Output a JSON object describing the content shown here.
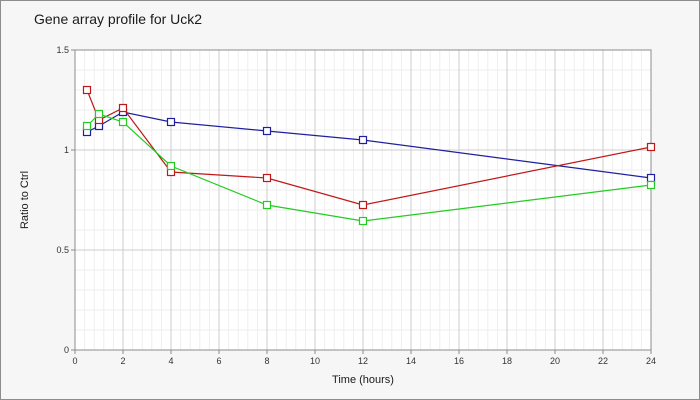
{
  "chart_data": {
    "type": "line",
    "title": "Gene array profile for Uck2",
    "xlabel": "Time (hours)",
    "ylabel": "Ratio to Ctrl",
    "xlim": [
      0,
      24
    ],
    "ylim": [
      0,
      1.5
    ],
    "x_ticks": [
      0,
      2,
      4,
      6,
      8,
      10,
      12,
      14,
      16,
      18,
      20,
      22,
      24
    ],
    "y_ticks": [
      0,
      0.5,
      1,
      1.5
    ],
    "y_tick_labels": [
      "0",
      "0.5",
      "1",
      "1.5"
    ],
    "grid": true,
    "legend": "none",
    "series": [
      {
        "color": "#1f1fa0",
        "marker": "square",
        "x": [
          0.5,
          1,
          2,
          4,
          8,
          12,
          24
        ],
        "y": [
          1.09,
          1.12,
          1.19,
          1.14,
          1.095,
          1.05,
          0.86
        ]
      },
      {
        "color": "#c01818",
        "marker": "square",
        "x": [
          0.5,
          1,
          2,
          4,
          8,
          12,
          24
        ],
        "y": [
          1.3,
          1.15,
          1.21,
          0.89,
          0.86,
          0.725,
          1.015
        ]
      },
      {
        "color": "#22cc22",
        "marker": "square",
        "x": [
          0.5,
          1,
          2,
          4,
          8,
          12,
          24
        ],
        "y": [
          1.12,
          1.18,
          1.14,
          0.92,
          0.725,
          0.645,
          0.825
        ]
      }
    ]
  }
}
